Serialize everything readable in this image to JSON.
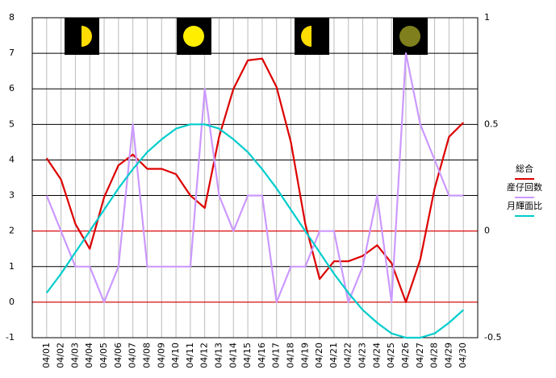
{
  "chart_data": {
    "type": "line",
    "categories": [
      "04/01",
      "04/02",
      "04/03",
      "04/04",
      "04/05",
      "04/06",
      "04/07",
      "04/08",
      "04/09",
      "04/10",
      "04/11",
      "04/12",
      "04/13",
      "04/14",
      "04/15",
      "04/16",
      "04/17",
      "04/18",
      "04/19",
      "04/20",
      "04/21",
      "04/22",
      "04/23",
      "04/24",
      "04/25",
      "04/26",
      "04/27",
      "04/28",
      "04/29",
      "04/30"
    ],
    "series": [
      {
        "name": "総合",
        "color": "#dd0000",
        "values": [
          4.05,
          3.45,
          2.2,
          1.5,
          2.95,
          3.85,
          4.15,
          3.75,
          3.75,
          3.6,
          3.0,
          2.65,
          4.65,
          6.0,
          6.8,
          6.85,
          6.05,
          4.5,
          2.2,
          0.65,
          1.15,
          1.15,
          1.3,
          1.6,
          1.1,
          0.0,
          1.2,
          3.2,
          4.65,
          5.05
        ]
      },
      {
        "name": "産仔回数",
        "color": "#cc99ff",
        "values": [
          3,
          2,
          1,
          1,
          0,
          1,
          5,
          1,
          1,
          1,
          1,
          6,
          3,
          2,
          3,
          3,
          0,
          1,
          1,
          2,
          2,
          0,
          1,
          3,
          0,
          7,
          5,
          4,
          3,
          3
        ]
      },
      {
        "name": "月輝面比",
        "color": "#00cccc",
        "axis": "y2",
        "values": [
          -0.29,
          -0.2,
          -0.1,
          0.0,
          0.1,
          0.2,
          0.29,
          0.37,
          0.43,
          0.48,
          0.5,
          0.5,
          0.48,
          0.43,
          0.37,
          0.29,
          0.2,
          0.1,
          0.0,
          -0.1,
          -0.2,
          -0.29,
          -0.37,
          -0.43,
          -0.48,
          -0.5,
          -0.5,
          -0.48,
          -0.43,
          -0.37
        ]
      }
    ],
    "ylim": [
      -1,
      8
    ],
    "yticks": [
      -1,
      0,
      1,
      2,
      3,
      4,
      5,
      6,
      7,
      8
    ],
    "y2lim": [
      -0.5,
      1
    ],
    "y2ticks": [
      -0.5,
      0,
      0.5,
      1
    ],
    "grid": true,
    "grid_color": "#000000",
    "highlight_lines": [
      0,
      2
    ],
    "highlight_color": "#ff0000",
    "legend": "right"
  }
}
